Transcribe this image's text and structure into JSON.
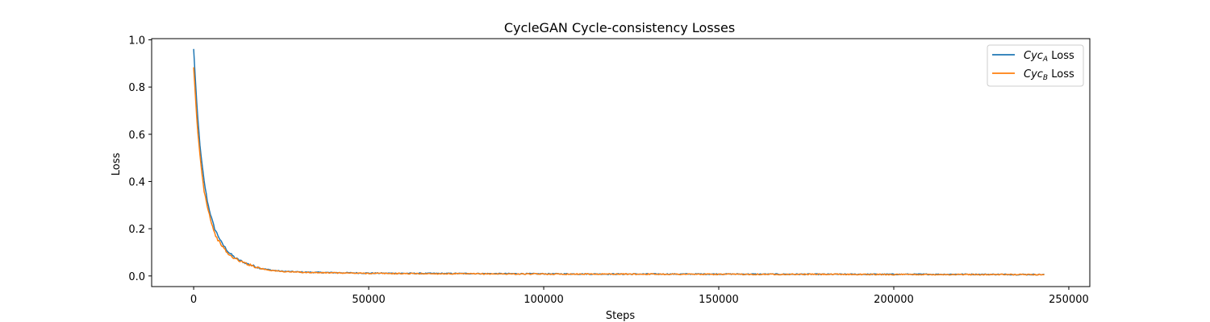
{
  "chart_data": {
    "type": "line",
    "title": "CycleGAN Cycle-consistency Losses",
    "xlabel": "Steps",
    "ylabel": "Loss",
    "xlim": [
      -12000,
      256000
    ],
    "ylim": [
      -0.045,
      1.005
    ],
    "xticks": [
      0,
      50000,
      100000,
      150000,
      200000,
      250000
    ],
    "xtick_labels": [
      "0",
      "50000",
      "100000",
      "150000",
      "200000",
      "250000"
    ],
    "yticks": [
      0.0,
      0.2,
      0.4,
      0.6,
      0.8,
      1.0
    ],
    "ytick_labels": [
      "0.0",
      "0.2",
      "0.4",
      "0.6",
      "0.8",
      "1.0"
    ],
    "grid": false,
    "legend_position": "top-right",
    "series": [
      {
        "name_base": "Cyc",
        "name_sub": "A",
        "name_suffix": " Loss",
        "color": "#1f77b4",
        "x": [
          0,
          1000,
          2000,
          3000,
          4000,
          5000,
          6000,
          7000,
          8000,
          9000,
          10000,
          12000,
          14000,
          16000,
          18000,
          20000,
          22000,
          25000,
          30000,
          35000,
          40000,
          50000,
          60000,
          80000,
          100000,
          120000,
          150000,
          180000,
          200000,
          220000,
          243000
        ],
        "y": [
          0.96,
          0.7,
          0.52,
          0.4,
          0.31,
          0.25,
          0.2,
          0.17,
          0.14,
          0.12,
          0.1,
          0.075,
          0.06,
          0.048,
          0.038,
          0.03,
          0.025,
          0.02,
          0.017,
          0.015,
          0.014,
          0.012,
          0.011,
          0.01,
          0.009,
          0.008,
          0.008,
          0.007,
          0.007,
          0.007,
          0.006
        ]
      },
      {
        "name_base": "Cyc",
        "name_sub": "B",
        "name_suffix": " Loss",
        "color": "#ff7f0e",
        "x": [
          0,
          1000,
          2000,
          3000,
          4000,
          5000,
          6000,
          7000,
          8000,
          9000,
          10000,
          12000,
          14000,
          16000,
          18000,
          20000,
          22000,
          25000,
          30000,
          35000,
          40000,
          50000,
          60000,
          80000,
          100000,
          120000,
          150000,
          180000,
          200000,
          220000,
          243000
        ],
        "y": [
          0.88,
          0.64,
          0.48,
          0.36,
          0.29,
          0.23,
          0.18,
          0.15,
          0.13,
          0.11,
          0.09,
          0.072,
          0.058,
          0.047,
          0.037,
          0.029,
          0.024,
          0.019,
          0.016,
          0.014,
          0.013,
          0.011,
          0.01,
          0.009,
          0.008,
          0.008,
          0.007,
          0.007,
          0.006,
          0.006,
          0.006
        ]
      }
    ]
  }
}
